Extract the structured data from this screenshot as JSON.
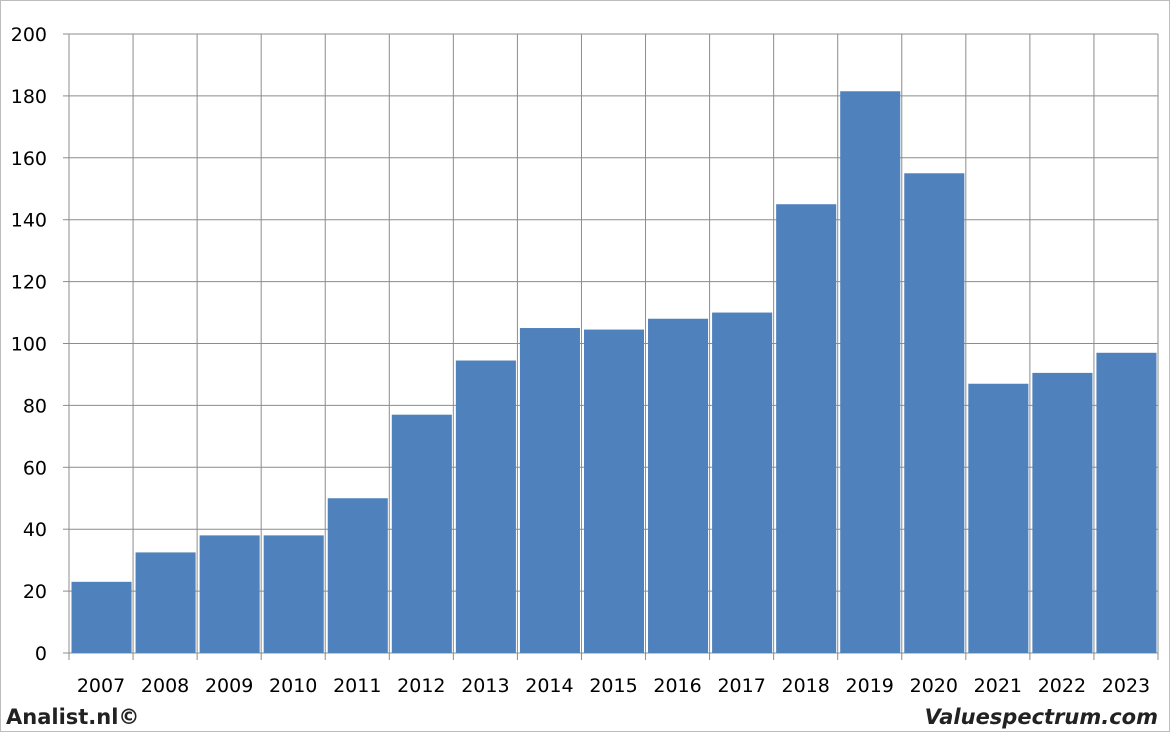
{
  "chart_data": {
    "type": "bar",
    "categories": [
      "2007",
      "2008",
      "2009",
      "2010",
      "2011",
      "2012",
      "2013",
      "2014",
      "2015",
      "2016",
      "2017",
      "2018",
      "2019",
      "2020",
      "2021",
      "2022",
      "2023"
    ],
    "values": [
      23,
      32.5,
      38,
      38,
      50,
      77,
      94.5,
      105,
      104.5,
      108,
      110,
      145,
      181.5,
      155,
      87,
      90.5,
      97
    ],
    "title": "",
    "xlabel": "",
    "ylabel": "",
    "ylim": [
      0,
      200
    ],
    "yticks": [
      0,
      20,
      40,
      60,
      80,
      100,
      120,
      140,
      160,
      180,
      200
    ],
    "grid": "on",
    "legend": "none",
    "colors": {
      "bar": "#4f81bd",
      "grid": "#8c8c8c",
      "axis": "#8c8c8c"
    }
  },
  "footer": {
    "left": "Analist.nl©",
    "right": "Valuespectrum.com"
  }
}
